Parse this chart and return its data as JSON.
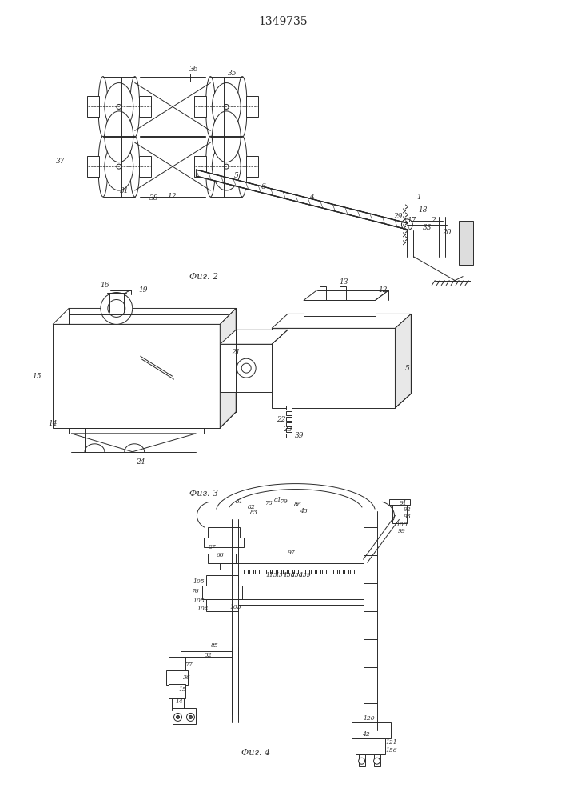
{
  "title": "1349735",
  "line_color": "#2a2a2a",
  "fig2_label": "Фиг. 2",
  "fig3_label": "Фиг. 3",
  "fig4_label": "Фиг. 4"
}
